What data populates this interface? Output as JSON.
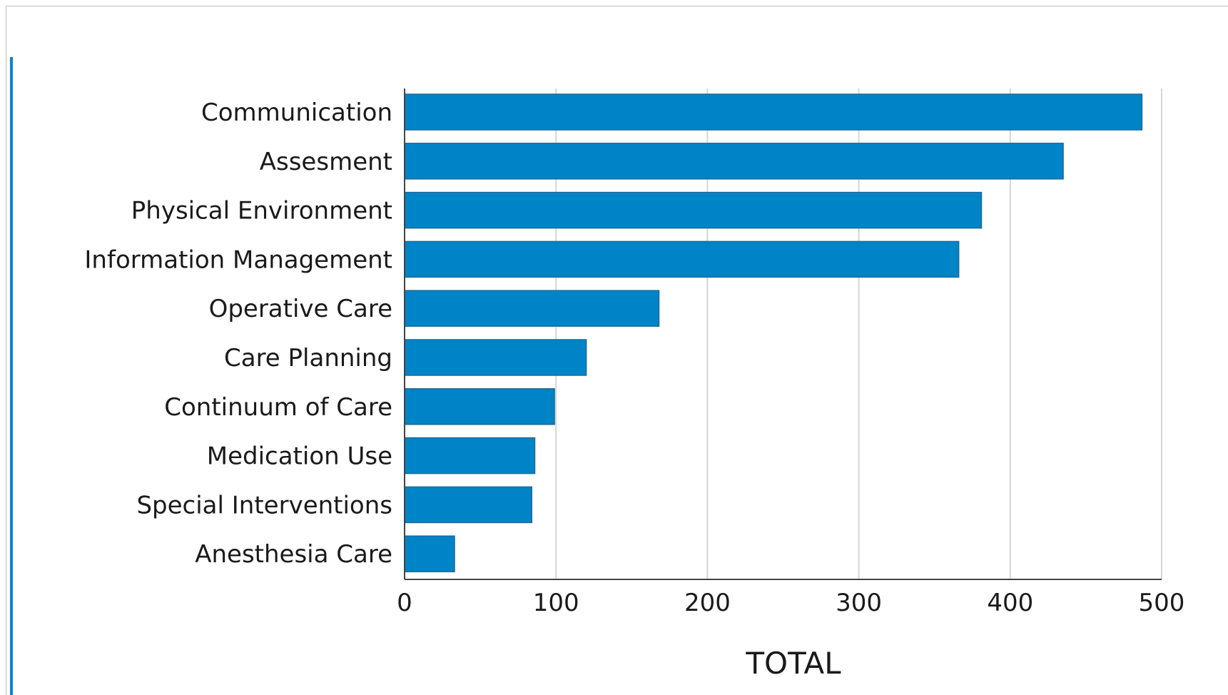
{
  "chart_data": {
    "type": "bar",
    "orientation": "horizontal",
    "categories": [
      "Communication",
      "Assesment",
      "Physical Environment",
      "Information Management",
      "Operative Care",
      "Care Planning",
      "Continuum of Care",
      "Medication Use",
      "Special Interventions",
      "Anesthesia Care"
    ],
    "values": [
      487,
      435,
      381,
      366,
      168,
      120,
      99,
      86,
      84,
      33
    ],
    "xlabel": "TOTAL",
    "ylabel": "",
    "title": "",
    "xlim": [
      0,
      500
    ],
    "xticks": [
      "0",
      "100",
      "200",
      "300",
      "400",
      "500"
    ],
    "grid": true,
    "legend": "none",
    "bar_color": "#0084c8",
    "bar_edge_color": "#1b6a99",
    "grid_color": "#d6d6d6",
    "accent_color": "#0a84cc"
  }
}
